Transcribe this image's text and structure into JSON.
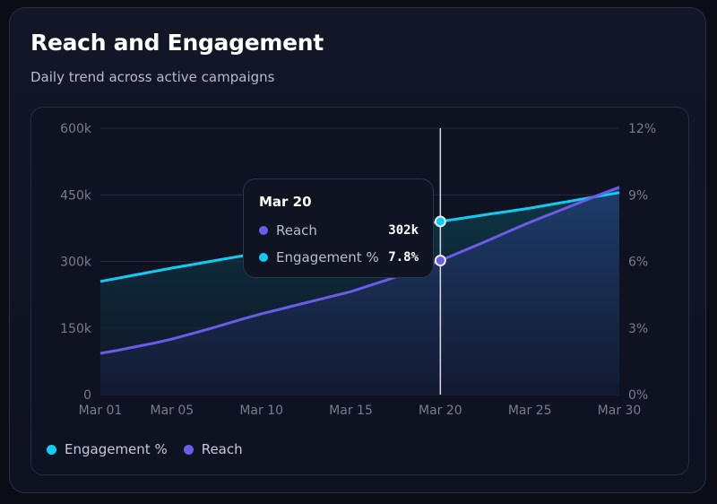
{
  "header": {
    "title": "Reach and Engagement",
    "subtitle": "Daily trend across active campaigns"
  },
  "colors": {
    "reach": "#6b5ce7",
    "engagement": "#10cbf2"
  },
  "tooltip": {
    "date": "Mar 20",
    "rows": [
      {
        "label": "Reach",
        "value": "302k"
      },
      {
        "label": "Engagement %",
        "value": "7.8%"
      }
    ]
  },
  "legend": [
    {
      "label": "Engagement %"
    },
    {
      "label": "Reach"
    }
  ],
  "chart_data": {
    "type": "line",
    "x_tick_labels": [
      "Mar 01",
      "Mar 05",
      "Mar 10",
      "Mar 15",
      "Mar 20",
      "Mar 25",
      "Mar 30"
    ],
    "x_tick_days": [
      1,
      5,
      10,
      15,
      20,
      25,
      30
    ],
    "y_left": {
      "ticks": [
        0,
        150,
        300,
        450,
        600
      ],
      "tick_labels": [
        "0",
        "150k",
        "300k",
        "450k",
        "600k"
      ],
      "range": [
        0,
        600
      ],
      "unit": "k"
    },
    "y_right": {
      "ticks": [
        0,
        3,
        6,
        9,
        12
      ],
      "tick_labels": [
        "0%",
        "3%",
        "6%",
        "9%",
        "12%"
      ],
      "range": [
        0,
        12
      ]
    },
    "grid": true,
    "legend_placement": "bottom-left",
    "highlight_day": 20,
    "days": [
      1,
      2,
      3,
      4,
      5,
      6,
      7,
      8,
      9,
      10,
      11,
      12,
      13,
      14,
      15,
      16,
      17,
      18,
      19,
      20,
      21,
      22,
      23,
      24,
      25,
      26,
      27,
      28,
      29,
      30
    ],
    "series": [
      {
        "name": "Reach",
        "axis": "left",
        "values": [
          93,
          100,
          108,
          116,
          125,
          136,
          147,
          159,
          171,
          182,
          192,
          202,
          212,
          222,
          232,
          245,
          258,
          272,
          287,
          302,
          319,
          336,
          353,
          371,
          388,
          404,
          420,
          436,
          452,
          467
        ]
      },
      {
        "name": "Engagement %",
        "axis": "right",
        "values": [
          5.1,
          5.25,
          5.4,
          5.55,
          5.7,
          5.84,
          5.98,
          6.12,
          6.26,
          6.4,
          6.54,
          6.68,
          6.82,
          6.96,
          7.1,
          7.24,
          7.38,
          7.52,
          7.66,
          7.8,
          7.92,
          8.04,
          8.16,
          8.28,
          8.4,
          8.54,
          8.68,
          8.82,
          8.96,
          9.1
        ]
      }
    ]
  }
}
